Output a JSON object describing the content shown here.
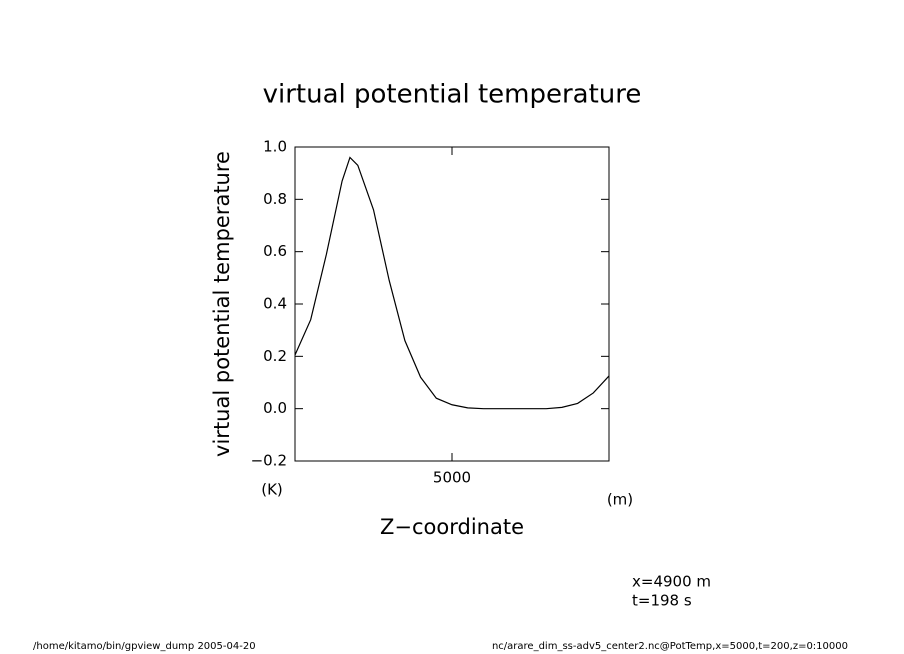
{
  "chart_data": {
    "type": "line",
    "title": "virtual potential temperature",
    "y_label": "virtual potential temperature",
    "x_label": "Z−coordinate",
    "y_unit": "(K)",
    "x_unit": "(m)",
    "notes": [
      "x=4900 m",
      "t=198 s"
    ],
    "footer_left": "/home/kitamo/bin/gpview_dump  2005-04-20",
    "footer_right": "nc/arare_dim_ss-adv5_center2.nc@PotTemp,x=5000,t=200,z=0:10000",
    "x": [
      0,
      500,
      1000,
      1500,
      1750,
      2000,
      2500,
      3000,
      3500,
      4000,
      4500,
      5000,
      5500,
      6000,
      6500,
      7000,
      7500,
      8000,
      8500,
      9000,
      9500,
      10000
    ],
    "series": [
      {
        "name": "virtual potential temperature",
        "color": "#000000",
        "values": [
          0.205,
          0.34,
          0.59,
          0.87,
          0.96,
          0.93,
          0.76,
          0.49,
          0.26,
          0.12,
          0.04,
          0.015,
          0.003,
          0,
          0,
          0,
          0,
          0,
          0.005,
          0.02,
          0.06,
          0.125
        ]
      }
    ],
    "xlim": [
      0,
      10000
    ],
    "xticks": [
      5000
    ],
    "ylim": [
      -0.2,
      1.0
    ],
    "yticks": [
      {
        "value": -0.2,
        "label": "−0.2"
      },
      {
        "value": 0,
        "label": "0.0"
      },
      0.2,
      0.4,
      0.6,
      0.8,
      {
        "value": 1,
        "label": "1.0"
      }
    ]
  }
}
